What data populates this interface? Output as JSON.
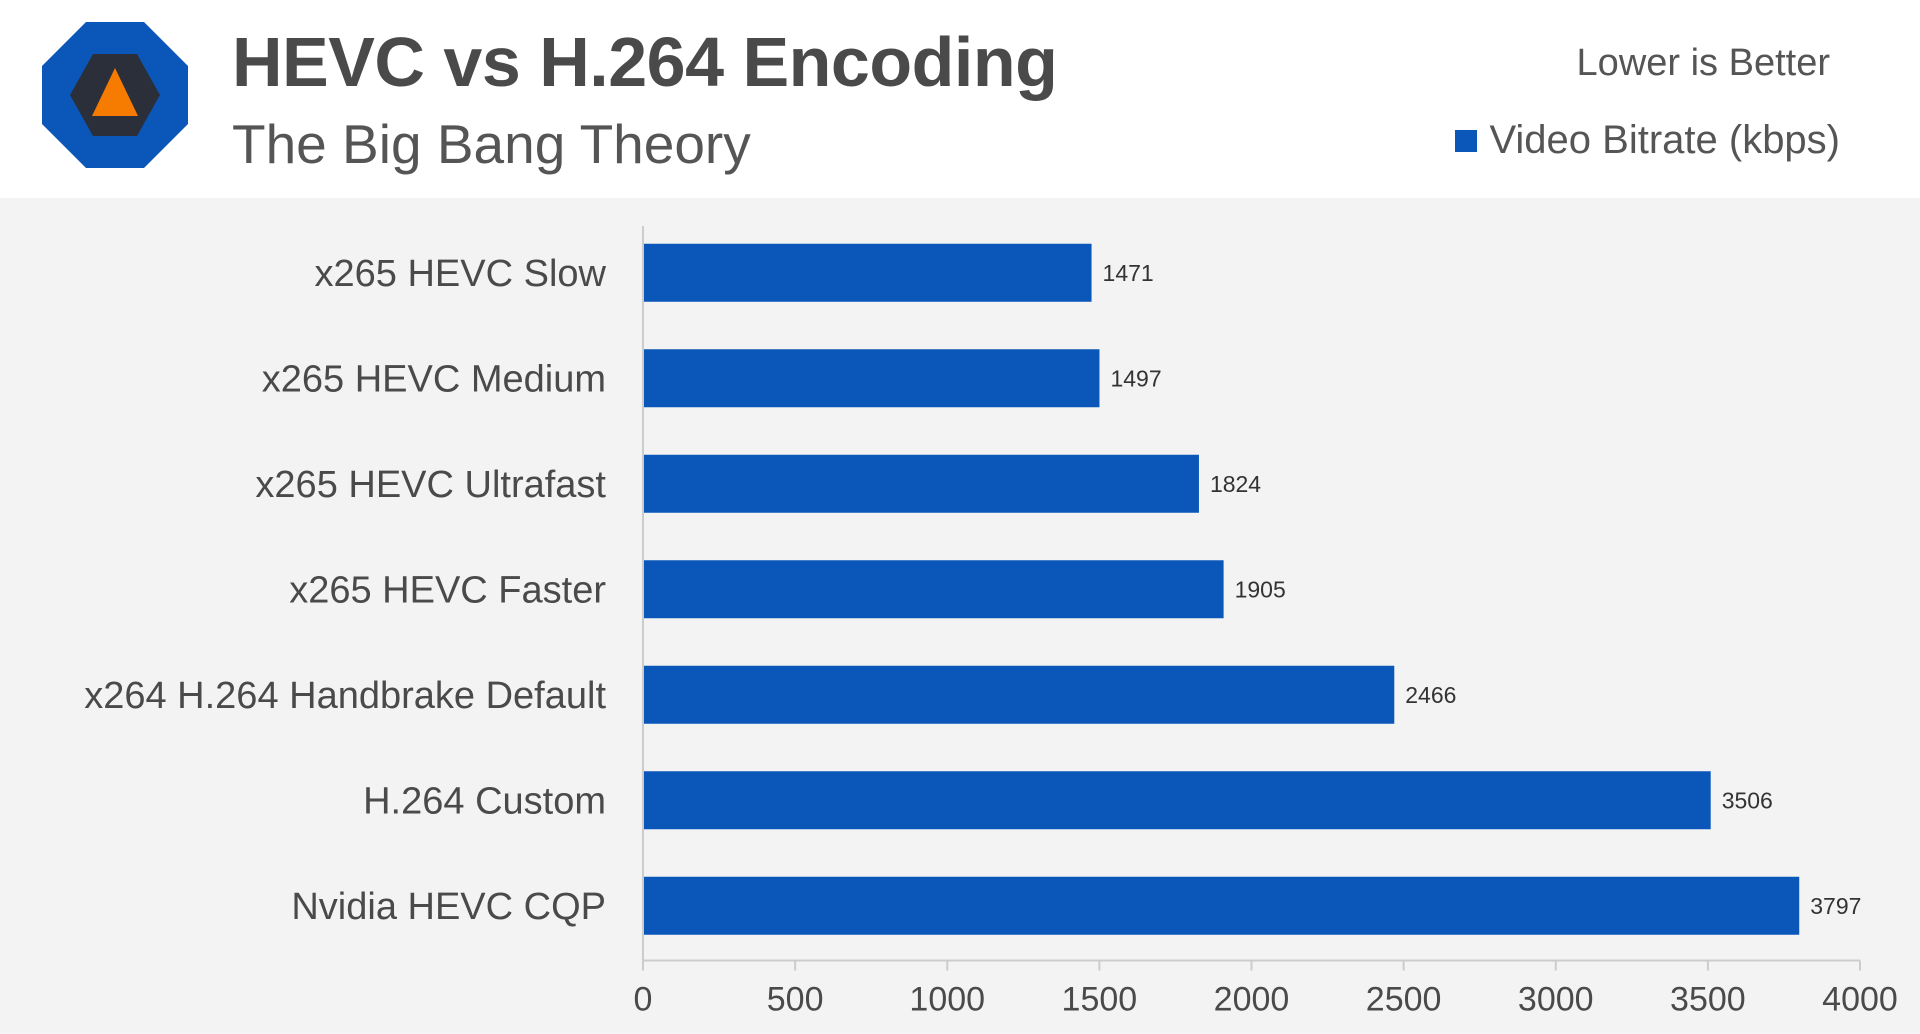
{
  "header": {
    "title": "HEVC vs H.264 Encoding",
    "subtitle": "The Big Bang Theory",
    "note": "Lower is Better",
    "logo_icon": "octagon-triangle-logo-icon"
  },
  "colors": {
    "bar": "#0b57b9",
    "logo_outer": "#0b57b9",
    "logo_inner": "#2b2f3a",
    "logo_triangle": "#f57c00"
  },
  "chart_data": {
    "type": "bar",
    "orientation": "horizontal",
    "title": "HEVC vs H.264 Encoding",
    "subtitle": "The Big Bang Theory",
    "categories": [
      "x265 HEVC Slow",
      "x265 HEVC Medium",
      "x265 HEVC Ultrafast",
      "x265 HEVC Faster",
      "x264 H.264 Handbrake Default",
      "H.264 Custom",
      "Nvidia HEVC CQP"
    ],
    "series": [
      {
        "name": "Video Bitrate (kbps)",
        "values": [
          1471,
          1497,
          1824,
          1905,
          2466,
          3506,
          3797
        ]
      }
    ],
    "xlim": [
      0,
      4000
    ],
    "xticks": [
      0,
      500,
      1000,
      1500,
      2000,
      2500,
      3000,
      3500,
      4000
    ],
    "legend_position": "top-right",
    "grid": false
  }
}
